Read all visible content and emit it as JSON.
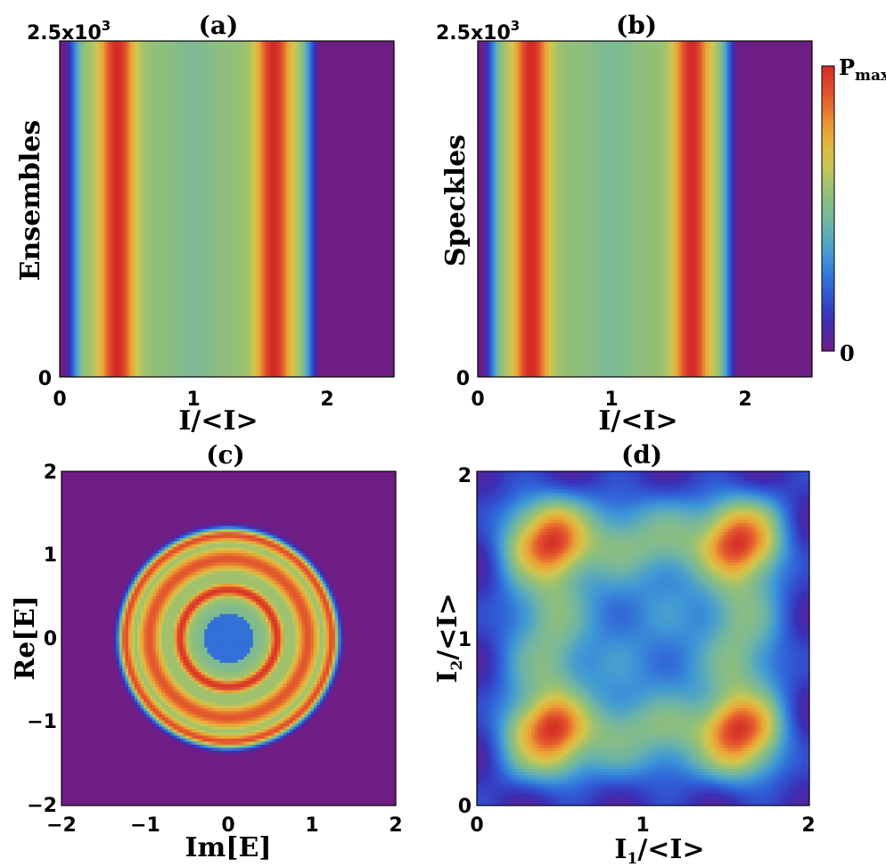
{
  "colors": {
    "background": "#7a1c83",
    "colormap": [
      "#6e1e85",
      "#3a2fb7",
      "#2f63d9",
      "#3f98d6",
      "#6db4a7",
      "#93c076",
      "#d2c64e",
      "#eca234",
      "#e35a2e",
      "#d42a26"
    ]
  },
  "colorbar": {
    "max_label_main": "P",
    "max_label_sub": "max",
    "min_label": "0"
  },
  "chart_data": [
    {
      "id": "a",
      "type": "heatmap",
      "title": "(a)",
      "xlabel": "I/<I>",
      "ylabel": "Ensembles",
      "xlim": [
        0,
        2.5
      ],
      "ylim": [
        0,
        2500
      ],
      "xticks": [
        "0",
        "1",
        "2"
      ],
      "yticks": [
        "0"
      ],
      "ytop_label": "2.5x10",
      "ytop_exp": "3",
      "profile_peaks": [
        0.43,
        1.6
      ],
      "profile_edge": 1.9
    },
    {
      "id": "b",
      "type": "heatmap",
      "title": "(b)",
      "xlabel": "I/<I>",
      "ylabel": "Speckles",
      "xlim": [
        0,
        2.5
      ],
      "ylim": [
        0,
        2500
      ],
      "xticks": [
        "0",
        "1",
        "2"
      ],
      "yticks": [
        "0"
      ],
      "ytop_label": "2.5x10",
      "ytop_exp": "3",
      "profile_peaks": [
        0.4,
        1.6
      ],
      "profile_edge": 1.9
    },
    {
      "id": "c",
      "type": "heatmap",
      "title": "(c)",
      "xlabel": "Im[E]",
      "ylabel": "Re[E]",
      "xlim": [
        -2,
        2
      ],
      "ylim": [
        -2,
        2
      ],
      "xticks": [
        "−2",
        "−1",
        "0",
        "1",
        "2"
      ],
      "yticks": [
        "−2",
        "−1",
        "0",
        "1",
        "2"
      ],
      "ring_radii": [
        0.58,
        1.24
      ],
      "outer_radius": 1.36
    },
    {
      "id": "d",
      "type": "heatmap",
      "title": "(d)",
      "xlabel_main": "I",
      "xlabel_sub": "1",
      "xlabel_rest": "/<I>",
      "ylabel_main": "I",
      "ylabel_sub": "2",
      "ylabel_rest": "/<I>",
      "xlim": [
        0,
        2
      ],
      "ylim": [
        0,
        2
      ],
      "xticks": [
        "0",
        "1",
        "2"
      ],
      "yticks": [
        "0",
        "1",
        "2"
      ],
      "peaks": [
        0.45,
        1.57
      ]
    }
  ]
}
